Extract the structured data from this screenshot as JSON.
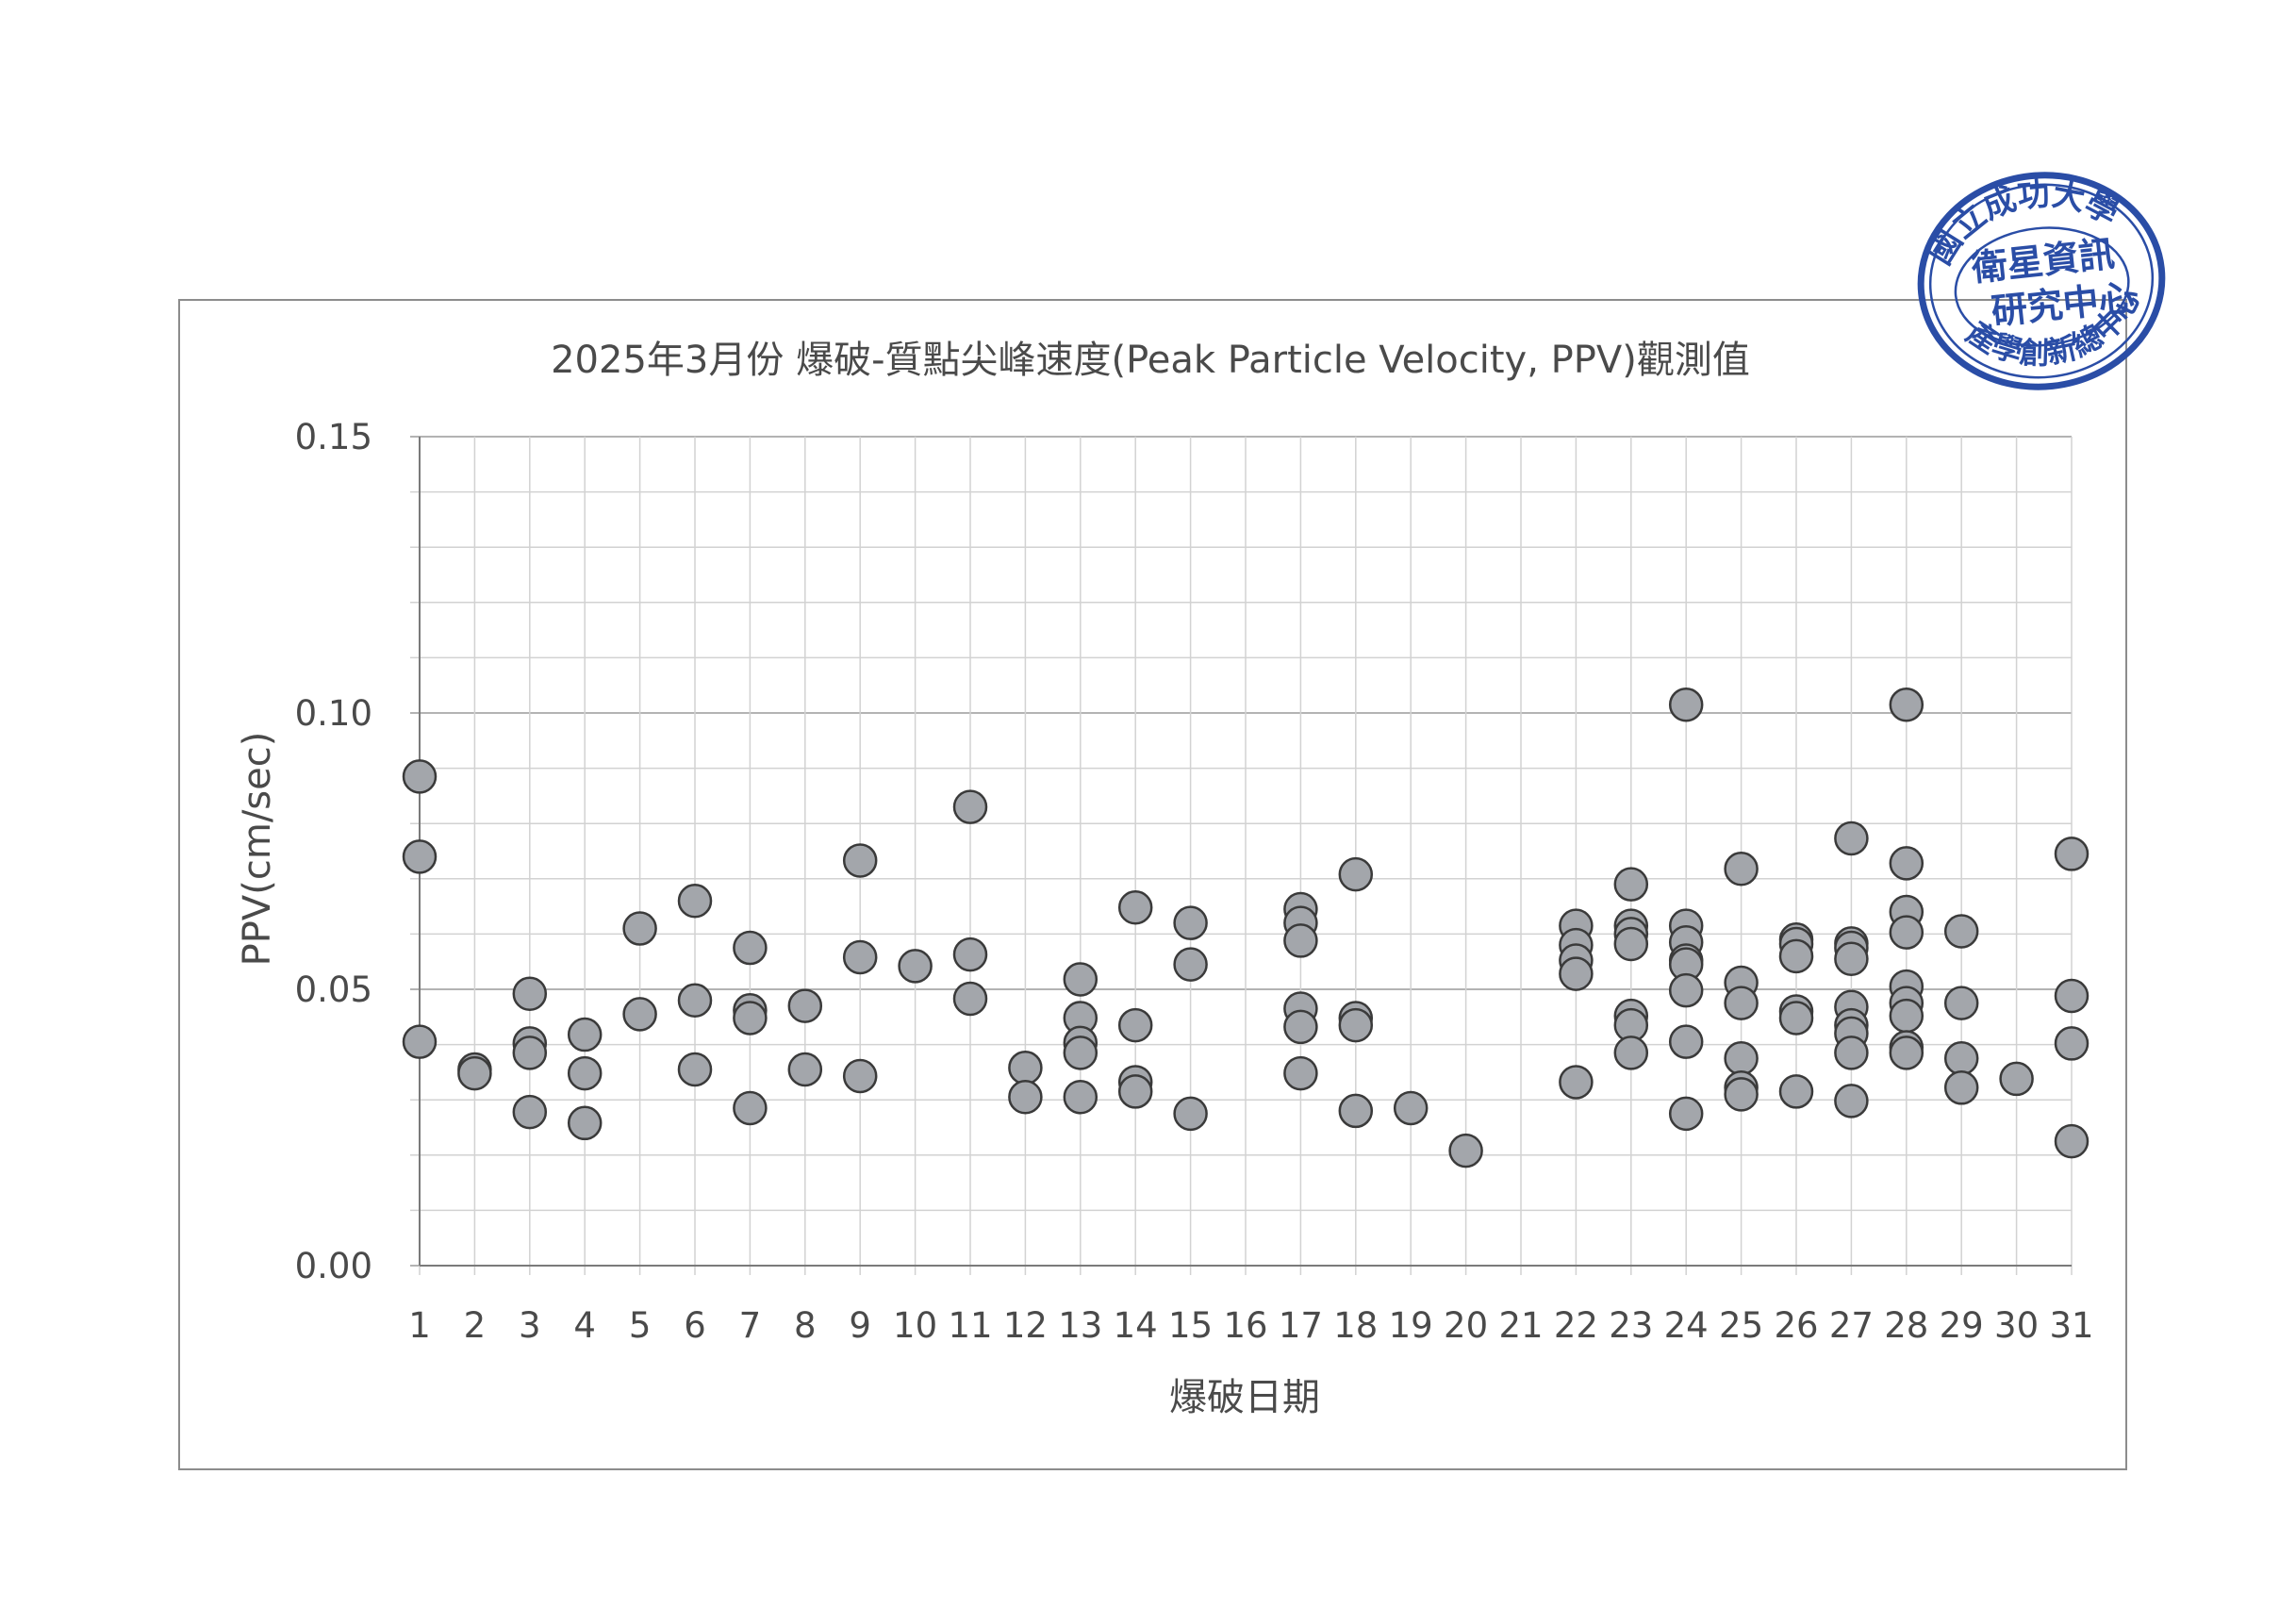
{
  "chart_data": {
    "type": "scatter",
    "title": "2025年3月份 爆破-質點尖峰速度(Peak Particle Velocity, PPV)觀測值",
    "xlabel": "爆破日期",
    "ylabel": "PPV(cm/sec)",
    "ylim": [
      0,
      0.15
    ],
    "yticks": [
      "0.00",
      "0.05",
      "0.10",
      "0.15"
    ],
    "categories": [
      "1",
      "2",
      "3",
      "4",
      "5",
      "6",
      "7",
      "8",
      "9",
      "10",
      "11",
      "12",
      "13",
      "14",
      "15",
      "16",
      "17",
      "18",
      "19",
      "20",
      "21",
      "22",
      "23",
      "24",
      "25",
      "26",
      "27",
      "28",
      "29",
      "30",
      "31"
    ],
    "grid": true,
    "legend": "none",
    "marker_color": "#a3a6ab",
    "points": [
      [
        1,
        0.0885
      ],
      [
        1,
        0.074
      ],
      [
        1,
        0.0405
      ],
      [
        2,
        0.0355
      ],
      [
        2,
        0.0348
      ],
      [
        3,
        0.0492
      ],
      [
        3,
        0.0402
      ],
      [
        3,
        0.0385
      ],
      [
        3,
        0.0278
      ],
      [
        4,
        0.0418
      ],
      [
        4,
        0.0348
      ],
      [
        4,
        0.0258
      ],
      [
        5,
        0.061
      ],
      [
        5,
        0.0455
      ],
      [
        6,
        0.066
      ],
      [
        6,
        0.048
      ],
      [
        6,
        0.0355
      ],
      [
        7,
        0.0575
      ],
      [
        7,
        0.0462
      ],
      [
        7,
        0.0448
      ],
      [
        7,
        0.0285
      ],
      [
        8,
        0.047
      ],
      [
        8,
        0.0355
      ],
      [
        9,
        0.0733
      ],
      [
        9,
        0.0558
      ],
      [
        9,
        0.0343
      ],
      [
        10,
        0.0542
      ],
      [
        11,
        0.083
      ],
      [
        11,
        0.0563
      ],
      [
        11,
        0.0483
      ],
      [
        12,
        0.0358
      ],
      [
        12,
        0.0305
      ],
      [
        13,
        0.0518
      ],
      [
        13,
        0.0448
      ],
      [
        13,
        0.0403
      ],
      [
        13,
        0.0385
      ],
      [
        13,
        0.0305
      ],
      [
        14,
        0.0648
      ],
      [
        14,
        0.0435
      ],
      [
        14,
        0.0332
      ],
      [
        14,
        0.0315
      ],
      [
        15,
        0.062
      ],
      [
        15,
        0.0545
      ],
      [
        15,
        0.0275
      ],
      [
        17,
        0.0645
      ],
      [
        17,
        0.062
      ],
      [
        17,
        0.0588
      ],
      [
        17,
        0.0465
      ],
      [
        17,
        0.0432
      ],
      [
        17,
        0.0348
      ],
      [
        18,
        0.0708
      ],
      [
        18,
        0.0448
      ],
      [
        18,
        0.0435
      ],
      [
        18,
        0.028
      ],
      [
        19,
        0.0285
      ],
      [
        20,
        0.0208
      ],
      [
        22,
        0.0615
      ],
      [
        22,
        0.058
      ],
      [
        22,
        0.0552
      ],
      [
        22,
        0.0528
      ],
      [
        22,
        0.0332
      ],
      [
        23,
        0.069
      ],
      [
        23,
        0.0615
      ],
      [
        23,
        0.06
      ],
      [
        23,
        0.0582
      ],
      [
        23,
        0.0452
      ],
      [
        23,
        0.0435
      ],
      [
        23,
        0.0385
      ],
      [
        24,
        0.1015
      ],
      [
        24,
        0.0615
      ],
      [
        24,
        0.0585
      ],
      [
        24,
        0.0552
      ],
      [
        24,
        0.0545
      ],
      [
        24,
        0.0498
      ],
      [
        24,
        0.0405
      ],
      [
        24,
        0.0275
      ],
      [
        25,
        0.0718
      ],
      [
        25,
        0.0512
      ],
      [
        25,
        0.0475
      ],
      [
        25,
        0.0375
      ],
      [
        25,
        0.0322
      ],
      [
        25,
        0.031
      ],
      [
        26,
        0.059
      ],
      [
        26,
        0.0582
      ],
      [
        26,
        0.056
      ],
      [
        26,
        0.046
      ],
      [
        26,
        0.0448
      ],
      [
        26,
        0.0315
      ],
      [
        27,
        0.0773
      ],
      [
        27,
        0.0583
      ],
      [
        27,
        0.0575
      ],
      [
        27,
        0.0555
      ],
      [
        27,
        0.0468
      ],
      [
        27,
        0.0435
      ],
      [
        27,
        0.042
      ],
      [
        27,
        0.0385
      ],
      [
        27,
        0.0298
      ],
      [
        28,
        0.1015
      ],
      [
        28,
        0.0728
      ],
      [
        28,
        0.064
      ],
      [
        28,
        0.0603
      ],
      [
        28,
        0.0505
      ],
      [
        28,
        0.0475
      ],
      [
        28,
        0.0452
      ],
      [
        28,
        0.0395
      ],
      [
        28,
        0.0385
      ],
      [
        29,
        0.0605
      ],
      [
        29,
        0.0475
      ],
      [
        29,
        0.0375
      ],
      [
        29,
        0.0322
      ],
      [
        30,
        0.0338
      ],
      [
        31,
        0.0745
      ],
      [
        31,
        0.0488
      ],
      [
        31,
        0.0402
      ],
      [
        31,
        0.0225
      ]
    ]
  },
  "stamp": {
    "ring_color": "#2a4da6"
  }
}
